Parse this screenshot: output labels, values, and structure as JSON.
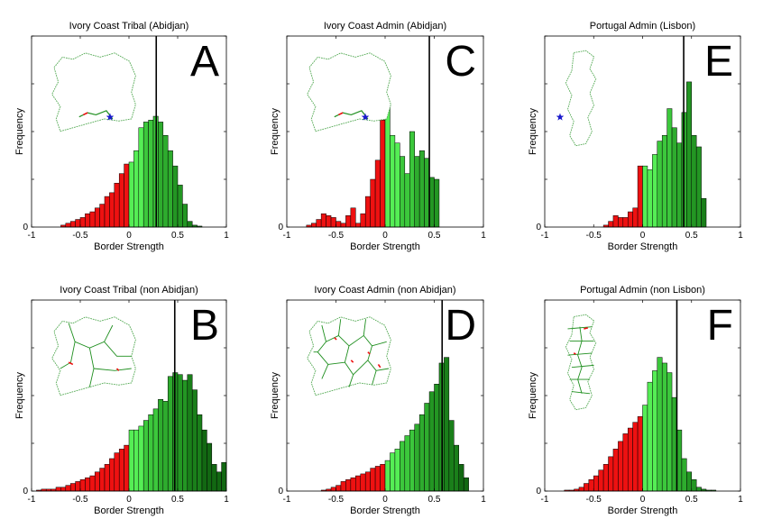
{
  "figure": {
    "ylabel": "Frequency",
    "xlabel": "Border Strength"
  },
  "chart_data": [
    {
      "type": "bar",
      "panel_letter": "A",
      "title": "Ivory Coast Tribal (Abidjan)",
      "xlabel": "Border Strength",
      "ylabel": "Frequency",
      "xlim": [
        -1,
        1
      ],
      "xticks": [
        -1,
        -0.5,
        0,
        0.5,
        1
      ],
      "xtick_labels": [
        "-1",
        "-0.5",
        "0",
        "0.5",
        "1"
      ],
      "ylim": [
        0,
        100
      ],
      "ytick_labels": [
        "0"
      ],
      "bin_width": 0.05,
      "bin_start": -0.7,
      "values": [
        1,
        2,
        3,
        4,
        5,
        7,
        8,
        10,
        12,
        16,
        18,
        23,
        28,
        33,
        34,
        40,
        52,
        55,
        56,
        58,
        55,
        48,
        40,
        32,
        22,
        12,
        3,
        1,
        0.5
      ],
      "vline": 0.28,
      "inset": "ivory-coast-outline",
      "inset_marker": "star (Abidjan)"
    },
    {
      "type": "bar",
      "panel_letter": "C",
      "title": "Ivory Coast Admin (Abidjan)",
      "xlabel": "Border Strength",
      "ylabel": "Frequency",
      "xlim": [
        -1,
        1
      ],
      "xticks": [
        -1,
        -0.5,
        0,
        0.5,
        1
      ],
      "xtick_labels": [
        "-1",
        "-0.5",
        "0",
        "0.5",
        "1"
      ],
      "ylim": [
        0,
        100
      ],
      "ytick_labels": [
        "0"
      ],
      "bin_width": 0.05,
      "bin_start": -0.8,
      "values": [
        1,
        2,
        4,
        7,
        6,
        5,
        3,
        2,
        6,
        10,
        2,
        7,
        16,
        25,
        35,
        56,
        65,
        48,
        44,
        37,
        28,
        50,
        37,
        40,
        36,
        26,
        25
      ],
      "vline": 0.45,
      "inset": "ivory-coast-outline",
      "inset_marker": "star (Abidjan)"
    },
    {
      "type": "bar",
      "panel_letter": "E",
      "title": "Portugal Admin (Lisbon)",
      "xlabel": "Border Strength",
      "ylabel": "Frequency",
      "xlim": [
        -1,
        1
      ],
      "xticks": [
        -1,
        -0.5,
        0,
        0.5,
        1
      ],
      "xtick_labels": [
        "-1",
        "-0.5",
        "0",
        "0.5",
        "1"
      ],
      "ylim": [
        0,
        100
      ],
      "ytick_labels": [
        "0"
      ],
      "bin_width": 0.05,
      "bin_start": -0.4,
      "values": [
        1,
        3,
        6,
        5,
        5,
        8,
        10,
        32,
        32,
        30,
        38,
        45,
        48,
        62,
        52,
        44,
        60,
        76,
        48,
        42,
        15
      ],
      "vline": 0.42,
      "inset": "portugal-outline",
      "inset_marker": "star (Lisbon)"
    },
    {
      "type": "bar",
      "panel_letter": "B",
      "title": "Ivory Coast Tribal (non Abidjan)",
      "xlabel": "Border Strength",
      "ylabel": "Frequency",
      "xlim": [
        -1,
        1
      ],
      "xticks": [
        -1,
        -0.5,
        0,
        0.5,
        1
      ],
      "xtick_labels": [
        "-1",
        "-0.5",
        "0",
        "0.5",
        "1"
      ],
      "ylim": [
        0,
        100
      ],
      "ytick_labels": [
        "0"
      ],
      "bin_width": 0.05,
      "bin_start": -0.95,
      "values": [
        0.5,
        1,
        1,
        1,
        2,
        2,
        3,
        4,
        5,
        6,
        7,
        8,
        10,
        12,
        14,
        17,
        20,
        22,
        24,
        32,
        32,
        34,
        37,
        40,
        43,
        48,
        47,
        60,
        62,
        61,
        58,
        61,
        53,
        40,
        32,
        25,
        14,
        10,
        15
      ],
      "vline": 0.47,
      "inset": "ivory-coast-tribal-borders",
      "inset_marker": ""
    },
    {
      "type": "bar",
      "panel_letter": "D",
      "title": "Ivory Coast Admin (non Abidjan)",
      "xlabel": "Border Strength",
      "ylabel": "Frequency",
      "xlim": [
        -1,
        1
      ],
      "xticks": [
        -1,
        -0.5,
        0,
        0.5,
        1
      ],
      "xtick_labels": [
        "-1",
        "-0.5",
        "0",
        "0.5",
        "1"
      ],
      "ylim": [
        0,
        100
      ],
      "ytick_labels": [
        "0"
      ],
      "bin_width": 0.05,
      "bin_start": -0.65,
      "values": [
        0.5,
        1,
        2,
        3,
        5,
        6,
        7,
        8,
        9,
        10,
        12,
        13,
        14,
        16,
        20,
        22,
        26,
        29,
        32,
        35,
        40,
        46,
        52,
        56,
        67,
        70,
        37,
        24,
        14,
        7
      ],
      "vline": 0.58,
      "inset": "ivory-coast-admin-borders",
      "inset_marker": ""
    },
    {
      "type": "bar",
      "panel_letter": "F",
      "title": "Portugal Admin (non Lisbon)",
      "xlabel": "Border Strength",
      "ylabel": "Frequency",
      "xlim": [
        -1,
        1
      ],
      "xticks": [
        -1,
        -0.5,
        0,
        0.5,
        1
      ],
      "xtick_labels": [
        "-1",
        "-0.5",
        "0",
        "0.5",
        "1"
      ],
      "ylim": [
        0,
        100
      ],
      "ytick_labels": [
        "0"
      ],
      "bin_width": 0.05,
      "bin_start": -0.8,
      "values": [
        0.5,
        0.5,
        1,
        2,
        4,
        6,
        8,
        11,
        14,
        18,
        22,
        26,
        30,
        33,
        36,
        39,
        45,
        57,
        63,
        70,
        67,
        62,
        49,
        32,
        17,
        10,
        6,
        2,
        1,
        0.5,
        0.5
      ],
      "vline": 0.35,
      "inset": "portugal-admin-borders",
      "inset_marker": ""
    }
  ]
}
